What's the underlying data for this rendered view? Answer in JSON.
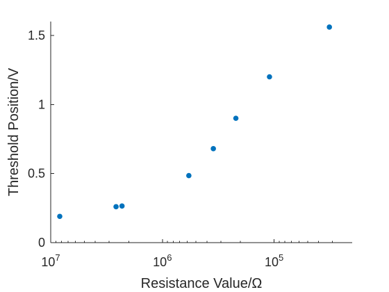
{
  "chart_data": {
    "type": "scatter",
    "title": "",
    "xlabel": "Resistance Value/Ω",
    "ylabel": "Threshold Position/V",
    "x_scale": "log",
    "x_reversed": true,
    "xlim": [
      10000000,
      20000
    ],
    "ylim": [
      0,
      1.6
    ],
    "x_ticks": [
      10000000,
      1000000,
      100000
    ],
    "x_tick_labels": [
      {
        "base": "10",
        "exp": "7"
      },
      {
        "base": "10",
        "exp": "6"
      },
      {
        "base": "10",
        "exp": "5"
      }
    ],
    "y_ticks": [
      0,
      0.5,
      1,
      1.5
    ],
    "y_tick_labels": [
      "0",
      "0.5",
      "1",
      "1.5"
    ],
    "grid": false,
    "marker_color": "#0072BD",
    "points": [
      {
        "x": 8300000,
        "y": 0.19
      },
      {
        "x": 2600000,
        "y": 0.26
      },
      {
        "x": 2300000,
        "y": 0.265
      },
      {
        "x": 580000,
        "y": 0.485
      },
      {
        "x": 350000,
        "y": 0.68
      },
      {
        "x": 220000,
        "y": 0.9
      },
      {
        "x": 110000,
        "y": 1.2
      },
      {
        "x": 32000,
        "y": 1.56
      }
    ]
  }
}
